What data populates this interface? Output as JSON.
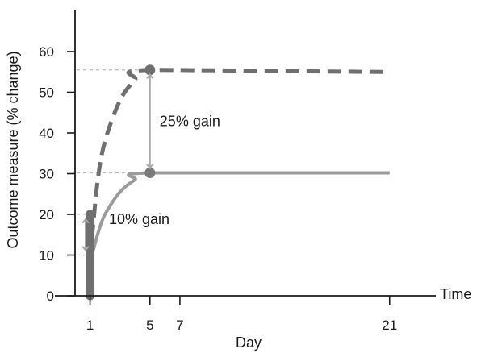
{
  "chart_data": {
    "type": "line",
    "title": "",
    "xlabel": "Day",
    "ylabel": "Outcome measure (% change)",
    "x_axis_end_label": "Time",
    "ylim": [
      0,
      60
    ],
    "xlim": [
      0,
      22
    ],
    "y_ticks": [
      0,
      10,
      20,
      30,
      40,
      50,
      60
    ],
    "x_ticks": [
      1,
      5,
      7,
      21
    ],
    "grid": false,
    "legend": "none",
    "series": [
      {
        "style": "dashed",
        "color": "#6f6f6f",
        "points": [
          [
            1,
            9
          ],
          [
            1.5,
            28
          ],
          [
            2,
            38
          ],
          [
            3,
            48
          ],
          [
            4,
            53
          ],
          [
            5,
            55.5
          ],
          [
            21,
            55
          ]
        ]
      },
      {
        "style": "solid",
        "color": "#9b9b9b",
        "points": [
          [
            1,
            8
          ],
          [
            1.5,
            15
          ],
          [
            2,
            20
          ],
          [
            3,
            25.5
          ],
          [
            4,
            28.5
          ],
          [
            5,
            30.2
          ],
          [
            21,
            30.2
          ]
        ]
      }
    ],
    "markers": [
      {
        "x": 5,
        "y": 55.5,
        "color": "#6f6f6f"
      },
      {
        "x": 5,
        "y": 30.2,
        "color": "#7a7a7a"
      }
    ],
    "day1_bar": {
      "x": 1,
      "y_from": 0,
      "y_to": 20,
      "color": "#6f6f6f"
    },
    "reference_lines": [
      {
        "y": 55.5,
        "x_to": 5
      },
      {
        "y": 30.2,
        "x_to": 5
      },
      {
        "y": 20,
        "x_to": 1
      },
      {
        "y": 10,
        "x_to": 1
      }
    ],
    "gain_arrows": [
      {
        "label": "25% gain",
        "x": 5,
        "y_from": 30.2,
        "y_to": 55.5
      },
      {
        "label": "10% gain",
        "x": 0.25,
        "y_from": 10,
        "y_to": 20
      }
    ]
  }
}
